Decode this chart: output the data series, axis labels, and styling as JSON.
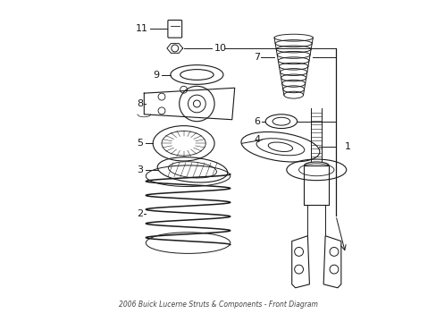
{
  "title": "2006 Buick Lucerne Struts & Components - Front Diagram",
  "bg_color": "#ffffff",
  "line_color": "#1a1a1a",
  "fig_width": 4.89,
  "fig_height": 3.6,
  "dpi": 100
}
